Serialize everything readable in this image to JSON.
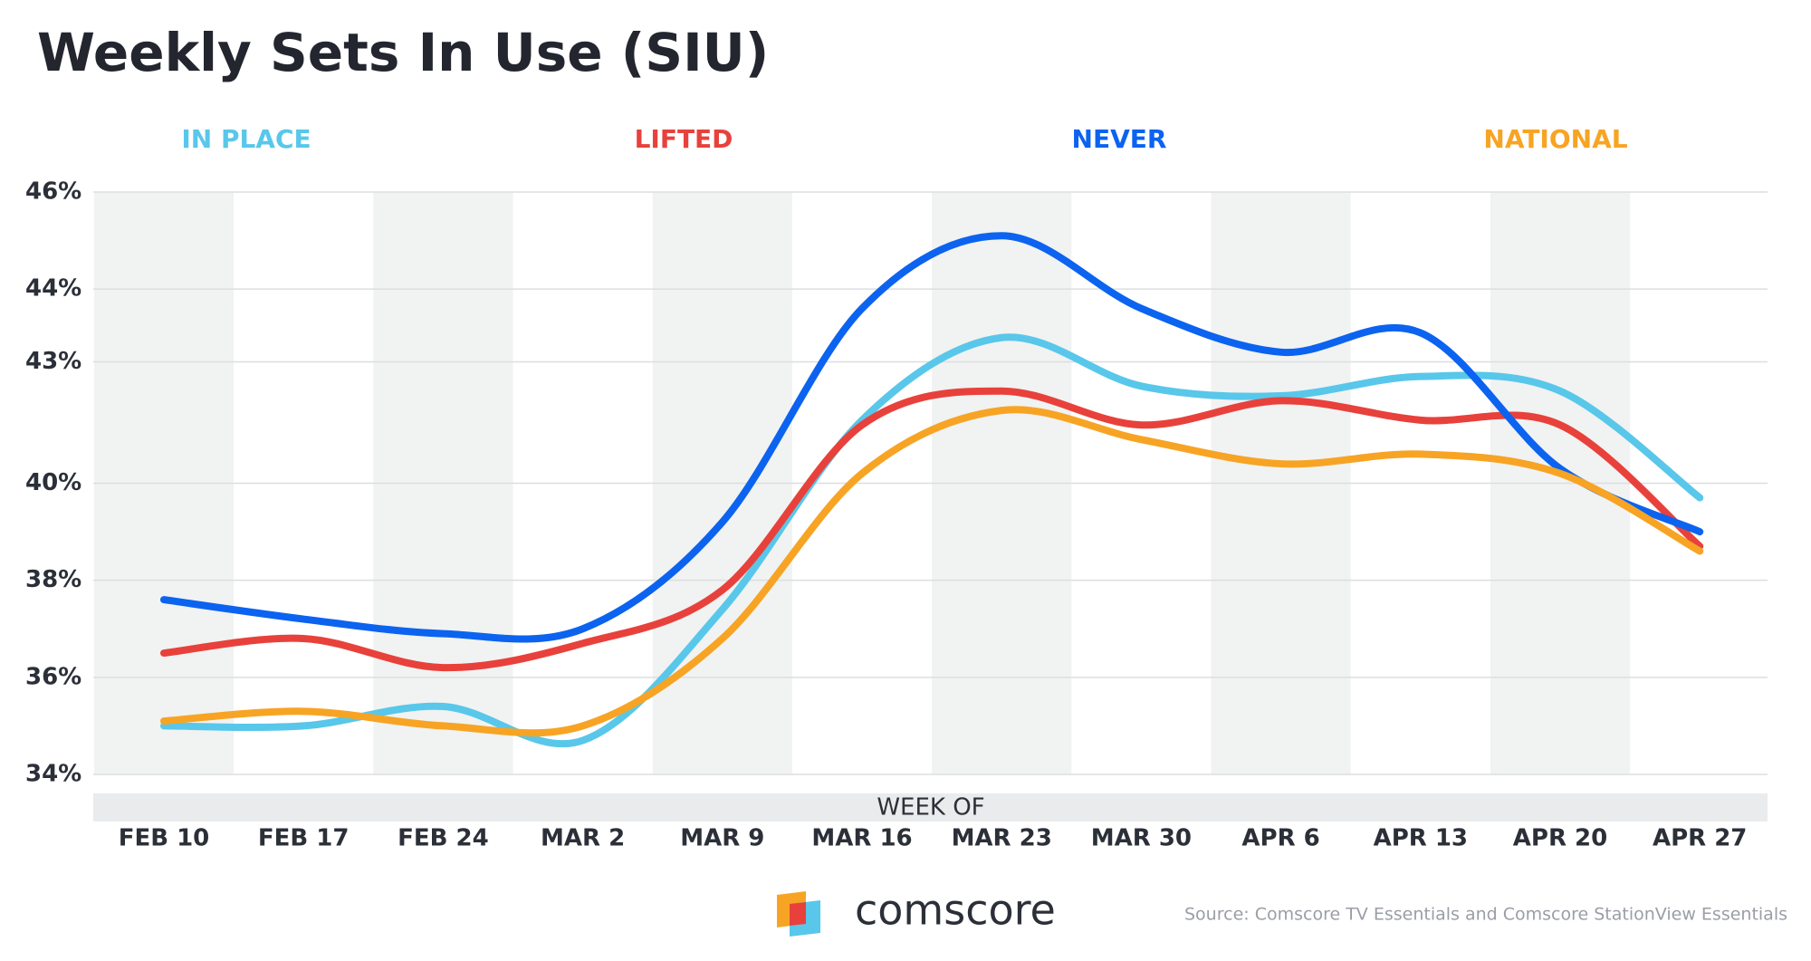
{
  "chart_data": {
    "type": "line",
    "title": "Weekly Sets In Use (SIU)",
    "xlabel": "WEEK OF",
    "categories": [
      "FEB 10",
      "FEB 17",
      "FEB 24",
      "MAR 2",
      "MAR 9",
      "MAR 16",
      "MAR 23",
      "MAR 30",
      "APR 6",
      "APR 13",
      "APR 20",
      "APR 27"
    ],
    "series": [
      {
        "name": "IN PLACE",
        "color": "#58c7ea",
        "values": [
          35.0,
          35.0,
          35.4,
          34.7,
          37.4,
          41.3,
          43.0,
          42.0,
          41.8,
          42.2,
          41.9,
          39.7
        ]
      },
      {
        "name": "LIFTED",
        "color": "#e8413b",
        "values": [
          36.5,
          36.8,
          36.2,
          36.7,
          37.8,
          41.2,
          41.9,
          41.2,
          41.7,
          41.3,
          41.2,
          38.7
        ]
      },
      {
        "name": "NEVER",
        "color": "#0b63f0",
        "values": [
          37.6,
          37.2,
          36.9,
          37.0,
          39.2,
          43.6,
          45.1,
          43.6,
          42.7,
          43.1,
          40.3,
          39.0
        ]
      },
      {
        "name": "NATIONAL",
        "color": "#f7a424",
        "values": [
          35.1,
          35.3,
          35.0,
          35.0,
          36.8,
          40.2,
          41.5,
          40.9,
          40.4,
          40.6,
          40.2,
          38.6
        ]
      }
    ],
    "ylim": [
      34,
      46
    ],
    "yticks": [
      {
        "value": 34,
        "label": "34%"
      },
      {
        "value": 36,
        "label": "36%"
      },
      {
        "value": 38,
        "label": "38%"
      },
      {
        "value": 40,
        "label": "40%"
      },
      {
        "value": 42.5,
        "label": "43%"
      },
      {
        "value": 44,
        "label": "44%"
      },
      {
        "value": 46,
        "label": "46%"
      }
    ],
    "grid": true,
    "brand": "comscore",
    "source": "Source: Comscore TV Essentials and Comscore StationView Essentials"
  }
}
